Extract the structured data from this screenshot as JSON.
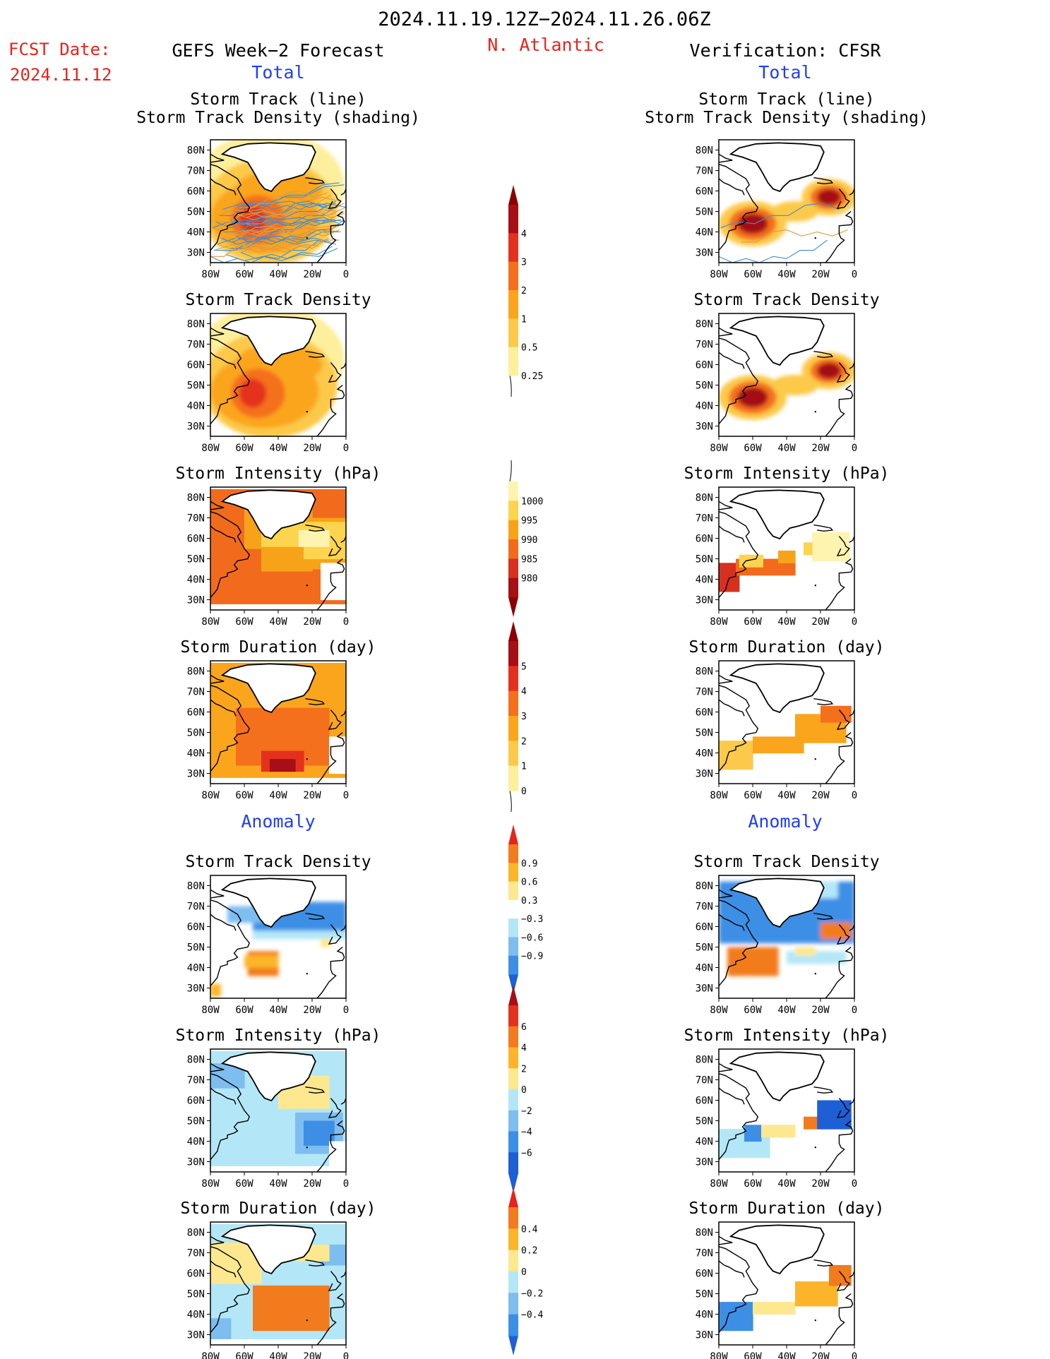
{
  "header": {
    "period": "2024.11.19.12Z−2024.11.26.06Z",
    "fcst_label": "FCST Date:",
    "fcst_date": "2024.11.12",
    "left_title": "GEFS Week−2 Forecast",
    "region": "N. Atlantic",
    "right_title": "Verification: CFSR",
    "left_total": "Total",
    "right_total": "Total",
    "left_anomaly": "Anomaly",
    "right_anomaly": "Anomaly"
  },
  "colors": {
    "title": "#000000",
    "red_text": "#e8231c",
    "blue_text": "#1f3dff",
    "track_line": "#3a8fd8",
    "track_line_alt": "#e09a40"
  },
  "map_axes": {
    "lon_ticks": [
      "80W",
      "60W",
      "40W",
      "20W",
      "0"
    ],
    "lat_ticks": [
      "80N",
      "70N",
      "60N",
      "50N",
      "40N",
      "30N"
    ],
    "lon_range": [
      -80,
      0
    ],
    "lat_range": [
      25,
      85
    ]
  },
  "panel_titles": {
    "track_line": "Storm Track (line)",
    "track_density_shading": "Storm Track Density (shading)",
    "density": "Storm Track Density",
    "intensity": "Storm Intensity (hPa)",
    "duration": "Storm Duration (day)"
  },
  "colorbars": [
    {
      "id": "density",
      "labels": [
        "4",
        "3",
        "2",
        "1",
        "0.5",
        "0.25"
      ],
      "colors": [
        "#a50f15",
        "#e4311d",
        "#f4701c",
        "#fba51d",
        "#fcc94a",
        "#fdef9c"
      ],
      "arrow_top": "#8b0000",
      "arrow_bottom": null
    },
    {
      "id": "intensity",
      "labels": [
        "1000",
        "995",
        "990",
        "985",
        "980"
      ],
      "colors": [
        "#fff3b0",
        "#fcd44d",
        "#f7a31a",
        "#f26b1d",
        "#d7301f",
        "#a50f15"
      ],
      "arrow_top": null,
      "arrow_bottom": "#8b0000"
    },
    {
      "id": "duration",
      "labels": [
        "5",
        "4",
        "3",
        "2",
        "1",
        "0"
      ],
      "colors": [
        "#a50f15",
        "#e4311d",
        "#f4701c",
        "#fba51d",
        "#fcc94a",
        "#fdef9c"
      ],
      "arrow_top": "#8b0000",
      "arrow_bottom": null
    },
    {
      "id": "anom_density",
      "labels": [
        "0.9",
        "0.6",
        "0.3",
        "−0.3",
        "−0.6",
        "−0.9"
      ],
      "colors": [
        "#f27b1d",
        "#fcb52a",
        "#fde890",
        "#ffffff",
        "#b3e7f7",
        "#7dbdf0",
        "#3d8fe6"
      ],
      "arrow_top": "#e8231c",
      "arrow_bottom": "#1f5fd6"
    },
    {
      "id": "anom_intensity",
      "labels": [
        "6",
        "4",
        "2",
        "0",
        "−2",
        "−4",
        "−6"
      ],
      "colors": [
        "#e4311d",
        "#f27b1d",
        "#fcb52a",
        "#fde890",
        "#b3e7f7",
        "#7dbdf0",
        "#3d8fe6",
        "#1f5fd6"
      ],
      "arrow_top": "#a50f15",
      "arrow_bottom": "#1f5fd6"
    },
    {
      "id": "anom_duration",
      "labels": [
        "0.4",
        "0.2",
        "0",
        "−0.2",
        "−0.4"
      ],
      "colors": [
        "#f27b1d",
        "#fcb52a",
        "#fde890",
        "#b3e7f7",
        "#7dbdf0",
        "#3d8fe6"
      ],
      "arrow_top": "#e8231c",
      "arrow_bottom": "#1f5fd6"
    }
  ],
  "chart_data": [
    {
      "type": "heatmap",
      "panel": "GEFS Total",
      "title": "Storm Track (line) / Storm Track Density (shading)",
      "field": "track density with storm tracks",
      "color_key": "density"
    },
    {
      "type": "heatmap",
      "panel": "GEFS Total",
      "title": "Storm Track Density",
      "color_key": "density"
    },
    {
      "type": "heatmap",
      "panel": "GEFS Total",
      "title": "Storm Intensity (hPa)",
      "color_key": "intensity"
    },
    {
      "type": "heatmap",
      "panel": "GEFS Total",
      "title": "Storm Duration (day)",
      "color_key": "duration"
    },
    {
      "type": "heatmap",
      "panel": "CFSR Total",
      "title": "Storm Track (line) / Storm Track Density (shading)",
      "color_key": "density"
    },
    {
      "type": "heatmap",
      "panel": "CFSR Total",
      "title": "Storm Track Density",
      "color_key": "density"
    },
    {
      "type": "heatmap",
      "panel": "CFSR Total",
      "title": "Storm Intensity (hPa)",
      "color_key": "intensity"
    },
    {
      "type": "heatmap",
      "panel": "CFSR Total",
      "title": "Storm Duration (day)",
      "color_key": "duration"
    },
    {
      "type": "heatmap",
      "panel": "GEFS Anomaly",
      "title": "Storm Track Density",
      "color_key": "anom_density"
    },
    {
      "type": "heatmap",
      "panel": "GEFS Anomaly",
      "title": "Storm Intensity (hPa)",
      "color_key": "anom_intensity"
    },
    {
      "type": "heatmap",
      "panel": "GEFS Anomaly",
      "title": "Storm Duration (day)",
      "color_key": "anom_duration"
    },
    {
      "type": "heatmap",
      "panel": "CFSR Anomaly",
      "title": "Storm Track Density",
      "color_key": "anom_density"
    },
    {
      "type": "heatmap",
      "panel": "CFSR Anomaly",
      "title": "Storm Intensity (hPa)",
      "color_key": "anom_intensity"
    },
    {
      "type": "heatmap",
      "panel": "CFSR Anomaly",
      "title": "Storm Duration (day)",
      "color_key": "anom_duration"
    }
  ]
}
